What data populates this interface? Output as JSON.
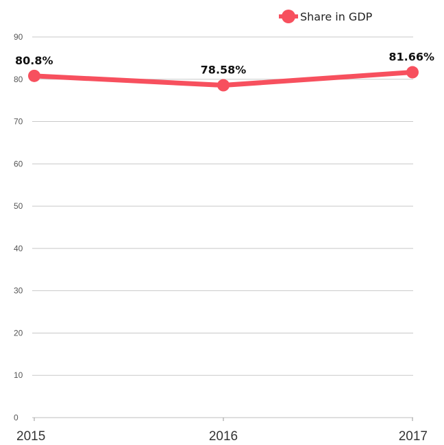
{
  "chart_data": {
    "type": "line",
    "title": "",
    "xlabel": "",
    "ylabel": "",
    "categories": [
      "2015",
      "2016",
      "2017"
    ],
    "series": [
      {
        "name": "Share in GDP",
        "values": [
          80.8,
          78.58,
          81.66
        ],
        "labels": [
          "80.8%",
          "78.58%",
          "81.66%"
        ],
        "color": "#f7505e"
      }
    ],
    "ylim": [
      0,
      90
    ],
    "yticks": [
      0,
      10,
      20,
      30,
      40,
      50,
      60,
      70,
      80,
      90
    ],
    "grid": true,
    "legend_position": "top-right"
  }
}
